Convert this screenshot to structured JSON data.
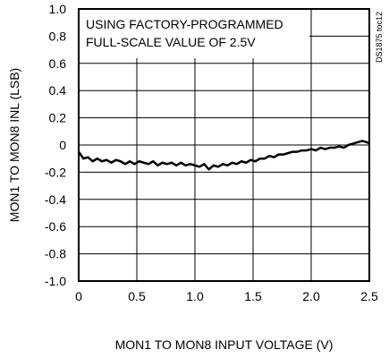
{
  "chart_data": {
    "type": "line",
    "title": "",
    "xlabel": "MON1 TO MON8 INPUT VOLTAGE (V)",
    "ylabel": "MON1 TO MON8 INL (LSB)",
    "xlim": [
      0,
      2.5
    ],
    "ylim": [
      -1.0,
      1.0
    ],
    "x_ticks": [
      0,
      0.5,
      1.0,
      1.5,
      2.0,
      2.5
    ],
    "x_tick_labels": [
      "0",
      "0.5",
      "1.0",
      "1.5",
      "2.0",
      "2.5"
    ],
    "y_ticks": [
      1.0,
      0.8,
      0.6,
      0.4,
      0.2,
      0,
      -0.2,
      -0.4,
      -0.6,
      -0.8,
      -1.0
    ],
    "y_tick_labels": [
      "1.0",
      "0.8",
      "0.6",
      "0.4",
      "0.2",
      "0",
      "-0.2",
      "-0.4",
      "-0.6",
      "-0.8",
      "-1.0"
    ],
    "grid": true,
    "annotation_lines": [
      "USING FACTORY-PROGRAMMED",
      "FULL-SCALE VALUE OF 2.5V"
    ],
    "side_label": "DS1875 toc12",
    "series": [
      {
        "color": "#000000",
        "points": [
          [
            0.0,
            -0.05
          ],
          [
            0.04,
            -0.1
          ],
          [
            0.08,
            -0.09
          ],
          [
            0.12,
            -0.12
          ],
          [
            0.16,
            -0.1
          ],
          [
            0.2,
            -0.12
          ],
          [
            0.24,
            -0.11
          ],
          [
            0.28,
            -0.13
          ],
          [
            0.32,
            -0.11
          ],
          [
            0.36,
            -0.12
          ],
          [
            0.4,
            -0.14
          ],
          [
            0.44,
            -0.12
          ],
          [
            0.48,
            -0.14
          ],
          [
            0.52,
            -0.12
          ],
          [
            0.56,
            -0.13
          ],
          [
            0.6,
            -0.14
          ],
          [
            0.64,
            -0.12
          ],
          [
            0.68,
            -0.15
          ],
          [
            0.72,
            -0.13
          ],
          [
            0.76,
            -0.14
          ],
          [
            0.8,
            -0.13
          ],
          [
            0.84,
            -0.15
          ],
          [
            0.88,
            -0.13
          ],
          [
            0.92,
            -0.15
          ],
          [
            0.96,
            -0.14
          ],
          [
            1.0,
            -0.15
          ],
          [
            1.04,
            -0.16
          ],
          [
            1.08,
            -0.14
          ],
          [
            1.12,
            -0.18
          ],
          [
            1.16,
            -0.15
          ],
          [
            1.2,
            -0.16
          ],
          [
            1.24,
            -0.14
          ],
          [
            1.28,
            -0.15
          ],
          [
            1.32,
            -0.13
          ],
          [
            1.36,
            -0.14
          ],
          [
            1.4,
            -0.12
          ],
          [
            1.44,
            -0.13
          ],
          [
            1.48,
            -0.11
          ],
          [
            1.52,
            -0.12
          ],
          [
            1.56,
            -0.1
          ],
          [
            1.6,
            -0.1
          ],
          [
            1.64,
            -0.08
          ],
          [
            1.68,
            -0.09
          ],
          [
            1.72,
            -0.07
          ],
          [
            1.76,
            -0.07
          ],
          [
            1.8,
            -0.06
          ],
          [
            1.84,
            -0.05
          ],
          [
            1.88,
            -0.05
          ],
          [
            1.92,
            -0.04
          ],
          [
            1.96,
            -0.04
          ],
          [
            2.0,
            -0.03
          ],
          [
            2.04,
            -0.04
          ],
          [
            2.08,
            -0.02
          ],
          [
            2.12,
            -0.03
          ],
          [
            2.16,
            -0.02
          ],
          [
            2.2,
            -0.02
          ],
          [
            2.24,
            -0.01
          ],
          [
            2.28,
            -0.02
          ],
          [
            2.32,
            0.0
          ],
          [
            2.36,
            0.01
          ],
          [
            2.4,
            0.02
          ],
          [
            2.44,
            0.03
          ],
          [
            2.48,
            0.02
          ],
          [
            2.5,
            0.01
          ]
        ]
      }
    ]
  }
}
